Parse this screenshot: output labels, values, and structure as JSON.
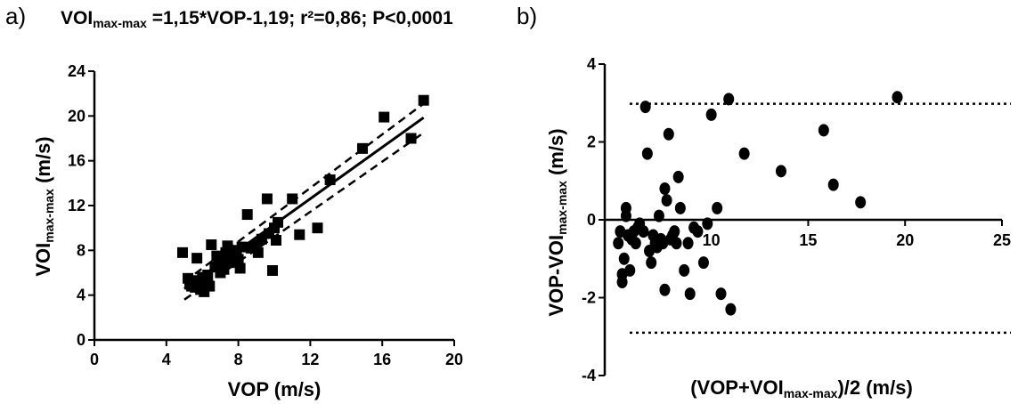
{
  "panel_a_label": "a)",
  "panel_b_label": "b)",
  "equation": {
    "voi": "VOI",
    "sub": "max-max",
    "rest": " =1,15*VOP-1,19; r²=0,86; P<0,0001"
  },
  "chart_data": [
    {
      "type": "scatter",
      "panel": "a)",
      "title": "VOImax-max =1,15*VOP-1,19; r²=0,86; P<0,0001",
      "xlabel": "VOP (m/s)",
      "ylabel": {
        "main": "VOI",
        "sub": "max-max",
        "unit": " (m/s)"
      },
      "xlim": [
        0,
        20
      ],
      "ylim": [
        0,
        24
      ],
      "xticks": [
        0,
        4,
        8,
        12,
        16,
        20
      ],
      "yticks": [
        0,
        4,
        8,
        12,
        16,
        20,
        24
      ],
      "marker": "square",
      "points": [
        [
          4.9,
          7.8
        ],
        [
          5.2,
          5.5
        ],
        [
          5.3,
          5.0
        ],
        [
          5.4,
          4.8
        ],
        [
          5.5,
          5.3
        ],
        [
          5.6,
          4.7
        ],
        [
          5.7,
          7.3
        ],
        [
          5.8,
          5.2
        ],
        [
          5.9,
          4.5
        ],
        [
          6.0,
          5.6
        ],
        [
          6.1,
          4.3
        ],
        [
          6.2,
          5.0
        ],
        [
          6.3,
          5.8
        ],
        [
          6.4,
          4.8
        ],
        [
          6.5,
          8.5
        ],
        [
          6.7,
          6.5
        ],
        [
          6.8,
          7.5
        ],
        [
          6.9,
          6.8
        ],
        [
          7.0,
          6.0
        ],
        [
          7.1,
          7.2
        ],
        [
          7.2,
          6.3
        ],
        [
          7.3,
          7.8
        ],
        [
          7.4,
          8.4
        ],
        [
          7.5,
          6.9
        ],
        [
          7.6,
          7.7
        ],
        [
          7.8,
          7.0
        ],
        [
          7.9,
          8.0
        ],
        [
          8.0,
          7.2
        ],
        [
          8.1,
          6.4
        ],
        [
          8.2,
          8.3
        ],
        [
          8.5,
          11.2
        ],
        [
          8.7,
          8.2
        ],
        [
          9.0,
          8.5
        ],
        [
          9.1,
          7.8
        ],
        [
          9.3,
          9.0
        ],
        [
          9.6,
          12.6
        ],
        [
          9.7,
          9.5
        ],
        [
          9.9,
          6.2
        ],
        [
          10.0,
          10.0
        ],
        [
          10.1,
          8.9
        ],
        [
          10.2,
          10.5
        ],
        [
          11.0,
          12.6
        ],
        [
          11.4,
          9.4
        ],
        [
          12.4,
          10.0
        ],
        [
          13.1,
          14.3
        ],
        [
          14.9,
          17.1
        ],
        [
          16.1,
          19.9
        ],
        [
          17.6,
          18.0
        ],
        [
          18.3,
          21.4
        ]
      ],
      "regression": {
        "slope": 1.15,
        "intercept": -1.19,
        "x_range": [
          5.0,
          18.3
        ]
      },
      "confidence_band": {
        "lower": [
          [
            5.0,
            3.6
          ],
          [
            18.3,
            18.5
          ]
        ],
        "upper": [
          [
            5.0,
            5.2
          ],
          [
            18.3,
            21.1
          ]
        ]
      }
    },
    {
      "type": "scatter",
      "panel": "b)",
      "xlabel": {
        "pre": "(VOP+VOI",
        "sub": "max-max",
        "post": ")/2 (m/s)"
      },
      "ylabel": {
        "main": "VOP-VOI",
        "sub": "max-max",
        "unit": " (m/s)"
      },
      "xlim": [
        4.5,
        25
      ],
      "ylim": [
        -4,
        4
      ],
      "xticks": [
        10,
        15,
        20,
        25
      ],
      "yticks": [
        -4,
        -2,
        0,
        2,
        4
      ],
      "marker": "circle",
      "reference_lines": {
        "zero": 0,
        "upper_limit": 2.98,
        "lower_limit": -2.9
      },
      "points": [
        [
          5.2,
          -0.6
        ],
        [
          5.3,
          -0.3
        ],
        [
          5.4,
          -1.6
        ],
        [
          5.4,
          -1.4
        ],
        [
          5.5,
          -1.0
        ],
        [
          5.6,
          0.3
        ],
        [
          5.6,
          0.1
        ],
        [
          5.7,
          -0.4
        ],
        [
          5.8,
          -1.3
        ],
        [
          5.9,
          -0.5
        ],
        [
          6.0,
          -0.3
        ],
        [
          6.1,
          -0.6
        ],
        [
          6.2,
          -0.2
        ],
        [
          6.3,
          -0.1
        ],
        [
          6.5,
          -0.3
        ],
        [
          6.6,
          2.9
        ],
        [
          6.7,
          1.7
        ],
        [
          6.8,
          -0.8
        ],
        [
          6.9,
          -1.1
        ],
        [
          7.0,
          -0.4
        ],
        [
          7.1,
          -0.6
        ],
        [
          7.2,
          -0.7
        ],
        [
          7.3,
          0.1
        ],
        [
          7.4,
          -0.5
        ],
        [
          7.5,
          -0.6
        ],
        [
          7.6,
          0.8
        ],
        [
          7.7,
          0.5
        ],
        [
          7.8,
          2.2
        ],
        [
          7.9,
          -0.5
        ],
        [
          8.0,
          -0.4
        ],
        [
          8.1,
          -0.3
        ],
        [
          8.2,
          -0.6
        ],
        [
          8.3,
          1.1
        ],
        [
          8.4,
          0.3
        ],
        [
          8.6,
          -1.3
        ],
        [
          8.8,
          -0.6
        ],
        [
          8.9,
          -1.9
        ],
        [
          9.1,
          -0.2
        ],
        [
          9.3,
          -0.3
        ],
        [
          9.6,
          -1.1
        ],
        [
          9.8,
          -0.1
        ],
        [
          10.0,
          2.7
        ],
        [
          10.3,
          0.3
        ],
        [
          10.5,
          -1.9
        ],
        [
          10.9,
          3.1
        ],
        [
          11.0,
          -2.3
        ],
        [
          11.7,
          1.7
        ],
        [
          13.6,
          1.25
        ],
        [
          15.8,
          2.3
        ],
        [
          16.3,
          0.9
        ],
        [
          17.7,
          0.45
        ],
        [
          19.6,
          3.15
        ],
        [
          7.6,
          -1.8
        ]
      ]
    }
  ]
}
